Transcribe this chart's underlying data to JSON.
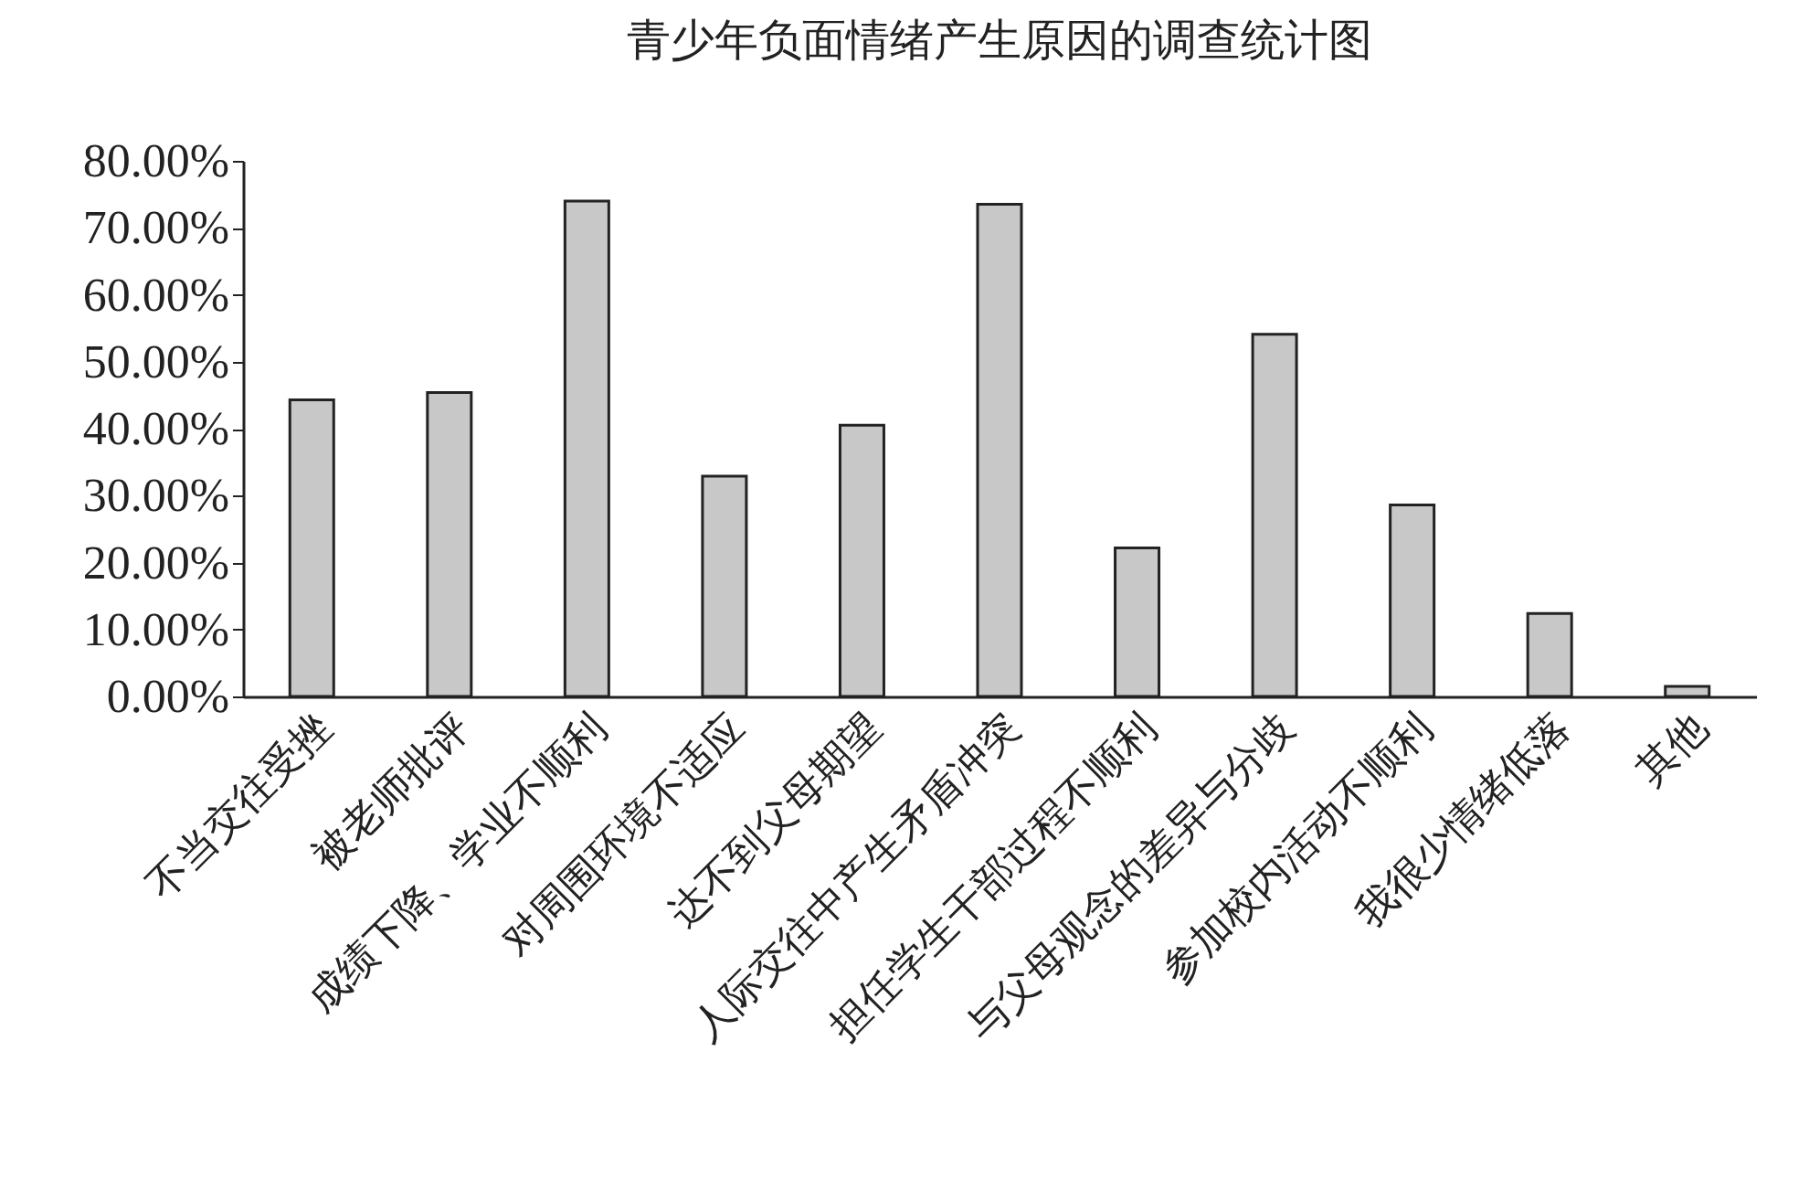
{
  "chart_data": {
    "type": "bar",
    "title": "青少年负面情绪产生原因的调查统计图",
    "categories": [
      "不当交往受挫",
      "被老师批评",
      "成绩下降、学业不顺利",
      "对周围环境不适应",
      "达不到父母期望",
      "人际交往中产生矛盾冲突",
      "担任学生干部过程不顺利",
      "与父母观念的差异与分歧",
      "参加校内活动不顺利",
      "我很少情绪低落",
      "其他"
    ],
    "values": [
      44.3,
      45.4,
      74.0,
      32.9,
      40.5,
      73.5,
      22.2,
      54.1,
      28.6,
      12.4,
      1.5
    ],
    "color": "#c8c8c8",
    "ylim": [
      0,
      80
    ],
    "yticks": [
      {
        "value": 0,
        "label": "0.00%"
      },
      {
        "value": 10,
        "label": "10.00%"
      },
      {
        "value": 20,
        "label": "20.00%"
      },
      {
        "value": 30,
        "label": "30.00%"
      },
      {
        "value": 40,
        "label": "40.00%"
      },
      {
        "value": 50,
        "label": "50.00%"
      },
      {
        "value": 60,
        "label": "60.00%"
      },
      {
        "value": 70,
        "label": "70.00%"
      },
      {
        "value": 80,
        "label": "80.00%"
      }
    ],
    "grid": false
  }
}
